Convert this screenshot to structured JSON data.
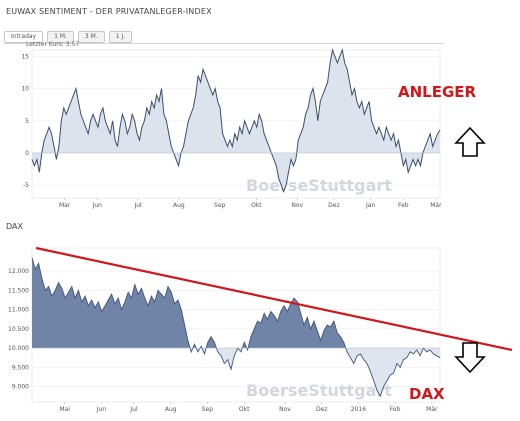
{
  "header": {
    "title": "EUWAX SENTIMENT - DER PRIVATANLEGER-INDEX",
    "tabs": [
      "Intraday",
      "1 M.",
      "3 M.",
      "1 J."
    ],
    "last_price": "Letzter Kurs: 3,57"
  },
  "dax_title": "DAX",
  "watermark": "BoerseStuttgart",
  "annotations": {
    "top": "ANLEGER",
    "bottom": "DAX"
  },
  "colors": {
    "sentiment_fill": "#dde3ec",
    "sentiment_line": "#3a4f6e",
    "dax_fill": "#6f84a6",
    "dax_fill_below": "#dfe5ee",
    "dax_line": "#3e5478",
    "trendline": "#d3161b",
    "arrow": "#000000"
  },
  "chart_data": [
    {
      "type": "area",
      "title": "EUWAX SENTIMENT - DER PRIVATANLEGER-INDEX",
      "ylim": [
        -7,
        16
      ],
      "yticks": [
        "-5",
        "0",
        "5",
        "10",
        "15"
      ],
      "ytick_values": [
        -5,
        0,
        5,
        10,
        15
      ],
      "xtick_labels": [
        "Mar",
        "Jun",
        "Jul",
        "Aug",
        "Sep",
        "Okt",
        "Nov",
        "Dez",
        "Jan",
        "Feb",
        "Mär"
      ],
      "xtick_positions": [
        0.08,
        0.16,
        0.26,
        0.36,
        0.46,
        0.55,
        0.65,
        0.74,
        0.83,
        0.91,
        0.99
      ],
      "baseline": 0,
      "values": [
        -1,
        -2,
        -1,
        -3,
        0,
        2,
        3,
        4,
        3,
        1,
        -1,
        1,
        5,
        7,
        6,
        7,
        8,
        9,
        10,
        8,
        6,
        5,
        4,
        3,
        5,
        6,
        5,
        4,
        6,
        7,
        5,
        4,
        3,
        5,
        2,
        1,
        4,
        6,
        5,
        3,
        4,
        6,
        5,
        3,
        2,
        4,
        5,
        7,
        6,
        8,
        7,
        9,
        8,
        10,
        6,
        5,
        3,
        1,
        0,
        -1,
        -2,
        0,
        1,
        3,
        5,
        6,
        7,
        9,
        12,
        11,
        13,
        12,
        11,
        10,
        9,
        10,
        8,
        7,
        3,
        2,
        1,
        2,
        1,
        3,
        2,
        4,
        3,
        5,
        4,
        3,
        4,
        5,
        4,
        6,
        5,
        3,
        2,
        1,
        0,
        -1,
        -2,
        -4,
        -5,
        -6,
        -5,
        -3,
        -1,
        -2,
        -1,
        2,
        3,
        4,
        6,
        7,
        9,
        10,
        8,
        5,
        8,
        9,
        10,
        11,
        14,
        16,
        15,
        14,
        15,
        16,
        14,
        13,
        11,
        9,
        10,
        8,
        7,
        8,
        6,
        7,
        8,
        5,
        4,
        3,
        4,
        3,
        2,
        4,
        3,
        2,
        3,
        1,
        2,
        0,
        -2,
        -1,
        -3,
        -2,
        -1,
        -2,
        -1,
        -2,
        0,
        1,
        2,
        3,
        1,
        2,
        3,
        3.57
      ]
    },
    {
      "type": "area",
      "title": "DAX",
      "ylim": [
        8600,
        12600
      ],
      "yticks": [
        "9.000",
        "9.500",
        "10.000",
        "10.500",
        "11.000",
        "11.500",
        "12.000"
      ],
      "ytick_values": [
        9000,
        9500,
        10000,
        10500,
        11000,
        11500,
        12000
      ],
      "xtick_labels": [
        "Mai",
        "Jun",
        "Jul",
        "Aug",
        "Sep",
        "Okt",
        "Nov",
        "Dez",
        "2016",
        "Feb",
        "Mär"
      ],
      "xtick_positions": [
        0.08,
        0.17,
        0.25,
        0.34,
        0.43,
        0.52,
        0.62,
        0.71,
        0.8,
        0.89,
        0.98
      ],
      "baseline": 10000,
      "values": [
        12350,
        12050,
        12200,
        11800,
        11500,
        11600,
        11350,
        11500,
        11700,
        11550,
        11300,
        11450,
        11600,
        11300,
        11500,
        11200,
        11350,
        11100,
        11250,
        11050,
        11200,
        10950,
        11100,
        11250,
        11400,
        11150,
        11300,
        11000,
        11200,
        11450,
        11300,
        11650,
        11400,
        11550,
        11300,
        11100,
        11350,
        11200,
        11500,
        11400,
        11300,
        11600,
        11450,
        11150,
        11250,
        11000,
        10600,
        10200,
        9900,
        10100,
        9900,
        10050,
        9850,
        10150,
        10300,
        10150,
        9900,
        9800,
        9600,
        9700,
        9450,
        9800,
        10000,
        9900,
        10150,
        9950,
        10300,
        10500,
        10700,
        10650,
        10900,
        10750,
        10950,
        10850,
        10700,
        10950,
        11100,
        10950,
        11150,
        11300,
        11200,
        10900,
        10600,
        10800,
        10500,
        10700,
        10450,
        10200,
        10450,
        10600,
        10550,
        10700,
        10400,
        10300,
        10150,
        9900,
        9750,
        9600,
        9800,
        9850,
        9700,
        9600,
        9400,
        9150,
        8900,
        8750,
        9000,
        9150,
        9300,
        9350,
        9600,
        9500,
        9700,
        9750,
        9900,
        9850,
        9950,
        9800,
        10000,
        9900,
        9950,
        9850,
        9800,
        9750
      ]
    }
  ]
}
